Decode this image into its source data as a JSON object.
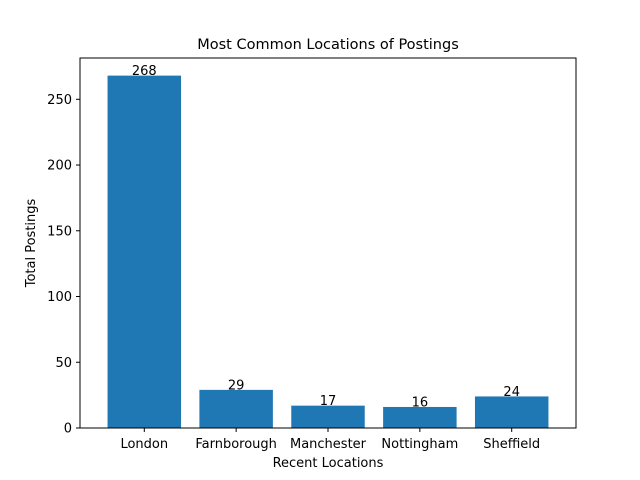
{
  "chart_data": {
    "type": "bar",
    "title": "Most Common Locations of Postings",
    "xlabel": "Recent Locations",
    "ylabel": "Total Postings",
    "categories": [
      "London",
      "Farnborough",
      "Manchester",
      "Nottingham",
      "Sheffield"
    ],
    "values": [
      268,
      29,
      17,
      16,
      24
    ],
    "data_labels": [
      "268",
      "29",
      "17",
      "16",
      "24"
    ],
    "ylim": [
      0,
      281.4
    ],
    "yticks": [
      0,
      50,
      100,
      150,
      200,
      250
    ],
    "grid": false,
    "legend": "none",
    "bar_color": "#1f77b4"
  }
}
